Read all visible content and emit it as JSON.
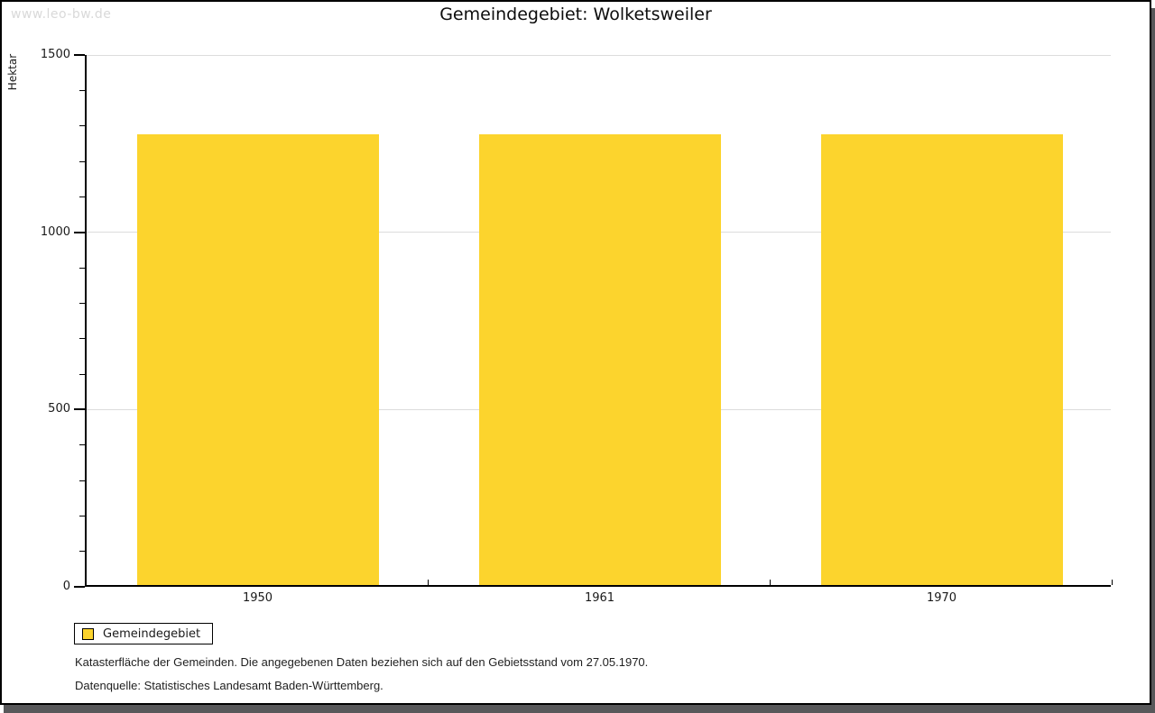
{
  "watermark": "www.leo-bw.de",
  "title": "Gemeindegebiet: Wolketsweiler",
  "chart_data": {
    "type": "bar",
    "title": "Gemeindegebiet: Wolketsweiler",
    "categories": [
      "1950",
      "1961",
      "1970"
    ],
    "values": [
      1270,
      1270,
      1270
    ],
    "series_name": "Gemeindegebiet",
    "xlabel": "",
    "ylabel": "Hektar",
    "ylim": [
      0,
      1500
    ],
    "ytick_major": 500,
    "ytick_minor": 100,
    "grid": "horizontal major gridlines",
    "legend_position": "bottom-left",
    "bar_color": "#fcd42d",
    "gridline_color": "#dcdcdc"
  },
  "legend": {
    "label": "Gemeindegebiet"
  },
  "footnotes": {
    "line1": "Katasterfläche der Gemeinden. Die angegebenen Daten beziehen sich auf den Gebietsstand vom 27.05.1970.",
    "line2": "Datenquelle: Statistisches Landesamt Baden-Württemberg."
  }
}
